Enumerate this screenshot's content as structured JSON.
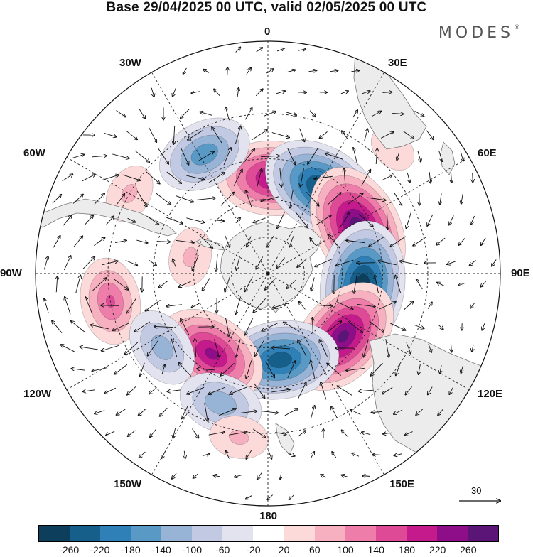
{
  "title": "Base 29/04/2025 00 UTC, valid 02/05/2025 00 UTC",
  "brand": "MODES",
  "brand_mark": "®",
  "longitude_labels": {
    "top": "0",
    "top_right": "30E",
    "right_upper": "60E",
    "right": "90E",
    "right_lower": "120E",
    "bottom_right": "150E",
    "bottom": "180",
    "bottom_left": "150W",
    "left_lower": "120W",
    "left": "90W",
    "left_upper": "60W",
    "top_left": "30W"
  },
  "reference_vector_label": "30",
  "colorbar": {
    "colors": [
      "#0d3f5c",
      "#175f8b",
      "#2f80b6",
      "#5899c6",
      "#97b3d6",
      "#c2c9e2",
      "#e3e3f0",
      "#ffffff",
      "#fcdada",
      "#f6b0bf",
      "#ee7daa",
      "#df4a97",
      "#c51a8b",
      "#8e0e8a",
      "#5b1577"
    ],
    "tick_labels": [
      "-260",
      "-220",
      "-180",
      "-140",
      "-100",
      "-60",
      "-20",
      "20",
      "60",
      "100",
      "140",
      "180",
      "220",
      "260"
    ]
  },
  "anomaly_centers": [
    {
      "lon": 3,
      "lat": -52,
      "value": 230
    },
    {
      "lon": 33,
      "lat": -50,
      "value": -280
    },
    {
      "lon": 63,
      "lat": -50,
      "value": 290
    },
    {
      "lon": 97,
      "lat": -52,
      "value": -290
    },
    {
      "lon": 130,
      "lat": -51,
      "value": 270
    },
    {
      "lon": 172,
      "lat": -55,
      "value": -250
    },
    {
      "lon": -145,
      "lat": -51,
      "value": 230
    },
    {
      "lon": -28,
      "lat": -38,
      "value": -170
    },
    {
      "lon": -100,
      "lat": -30,
      "value": 140
    },
    {
      "lon": -125,
      "lat": -40,
      "value": -120
    },
    {
      "lon": -160,
      "lat": -37,
      "value": -130
    },
    {
      "lon": -78,
      "lat": -58,
      "value": 60
    },
    {
      "lon": -60,
      "lat": -30,
      "value": 60
    },
    {
      "lon": 45,
      "lat": -25,
      "value": 40
    },
    {
      "lon": -170,
      "lat": -28,
      "value": 60
    }
  ]
}
